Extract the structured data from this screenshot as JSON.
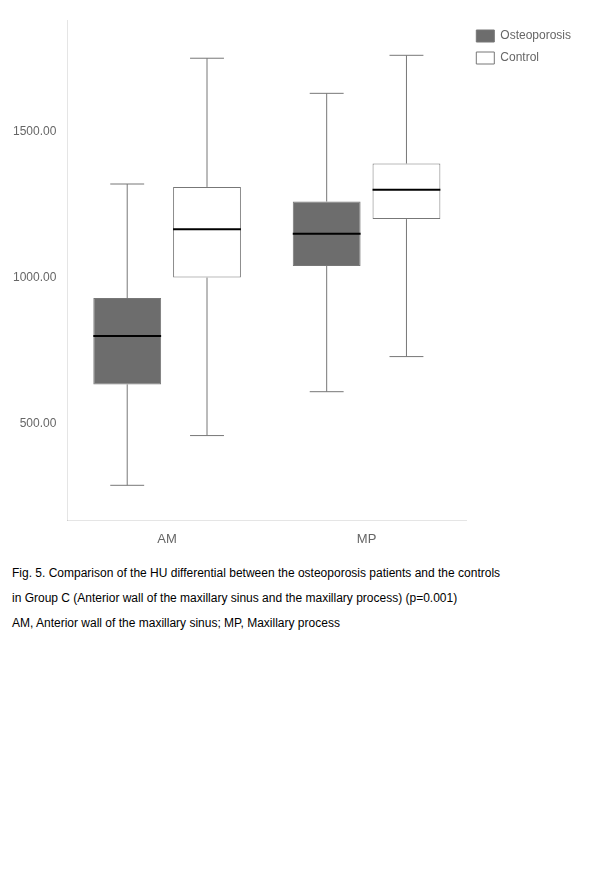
{
  "chart_data": {
    "type": "box",
    "categories": [
      "AM",
      "MP"
    ],
    "series": [
      {
        "name": "Osteoporosis",
        "color": "#6d6d6d",
        "values": [
          {
            "whislo": 290,
            "q1": 635,
            "med": 800,
            "q3": 930,
            "whishi": 1320
          },
          {
            "whislo": 610,
            "q1": 1040,
            "med": 1150,
            "q3": 1260,
            "whishi": 1630
          }
        ]
      },
      {
        "name": "Control",
        "color": "#ffffff",
        "values": [
          {
            "whislo": 460,
            "q1": 1000,
            "med": 1165,
            "q3": 1310,
            "whishi": 1750
          },
          {
            "whislo": 730,
            "q1": 1200,
            "med": 1300,
            "q3": 1390,
            "whishi": 1760
          }
        ]
      }
    ],
    "ylim": [
      170,
      1880
    ],
    "yticks": [
      {
        "value": 500,
        "label": "500.00"
      },
      {
        "value": 1000,
        "label": "1000.00"
      },
      {
        "value": 1500,
        "label": "1500.00"
      }
    ],
    "grid": false,
    "legend": "right",
    "annotations": [
      "Fig. 5. Comparison of the HU differential between the osteoporosis patients and the controls",
      "in Group C (Anterior wall of the maxillary sinus and the maxillary process) (p=0.001)",
      "AM, Anterior wall of the maxillary sinus; MP, Maxillary process"
    ]
  }
}
